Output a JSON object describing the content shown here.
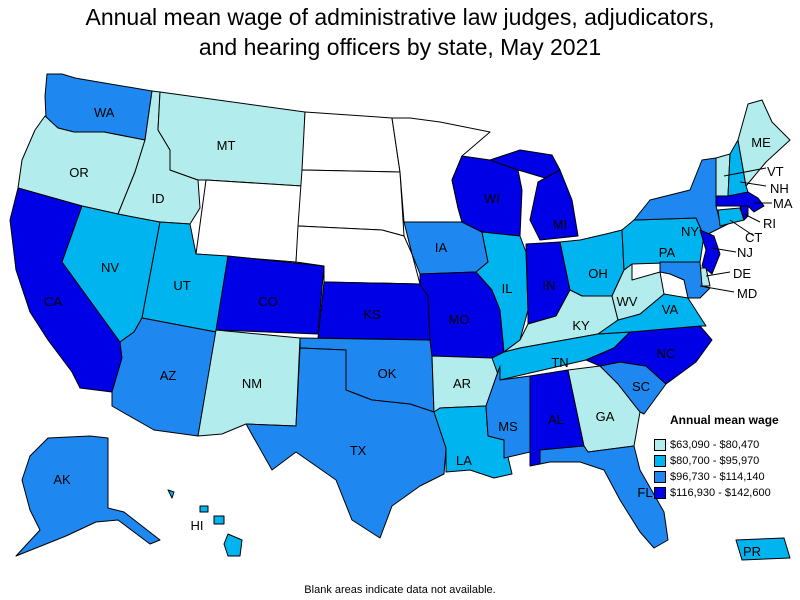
{
  "title_line1": "Annual mean wage of administrative law judges, adjudicators,",
  "title_line2": "and hearing officers by state, May 2021",
  "legend": {
    "title": "Annual mean wage",
    "items": [
      {
        "label": "$63,090 - $80,470",
        "color": "#b2ecec"
      },
      {
        "label": "$80,700 - $95,970",
        "color": "#00b4f0"
      },
      {
        "label": "$96,730 - $114,140",
        "color": "#1e88f0"
      },
      {
        "label": "$116,930 - $142,600",
        "color": "#0000e6"
      }
    ]
  },
  "no_data_color": "#ffffff",
  "footnote": "Blank areas indicate data not available.",
  "states": {
    "WA": {
      "label": "WA",
      "tier": 3
    },
    "OR": {
      "label": "OR",
      "tier": 1
    },
    "CA": {
      "label": "CA",
      "tier": 4
    },
    "NV": {
      "label": "NV",
      "tier": 2
    },
    "ID": {
      "label": "ID",
      "tier": 1
    },
    "MT": {
      "label": "MT",
      "tier": 1
    },
    "WY": {
      "label": "",
      "tier": 0
    },
    "UT": {
      "label": "UT",
      "tier": 2
    },
    "AZ": {
      "label": "AZ",
      "tier": 3
    },
    "CO": {
      "label": "CO",
      "tier": 4
    },
    "NM": {
      "label": "NM",
      "tier": 1
    },
    "ND": {
      "label": "",
      "tier": 0
    },
    "SD": {
      "label": "",
      "tier": 0
    },
    "NE": {
      "label": "",
      "tier": 0
    },
    "KS": {
      "label": "KS",
      "tier": 4
    },
    "OK": {
      "label": "OK",
      "tier": 3
    },
    "TX": {
      "label": "TX",
      "tier": 3
    },
    "MN": {
      "label": "",
      "tier": 0
    },
    "IA": {
      "label": "IA",
      "tier": 3
    },
    "MO": {
      "label": "MO",
      "tier": 4
    },
    "AR": {
      "label": "AR",
      "tier": 1
    },
    "LA": {
      "label": "LA",
      "tier": 2
    },
    "WI": {
      "label": "WI",
      "tier": 4
    },
    "IL": {
      "label": "IL",
      "tier": 2
    },
    "MI": {
      "label": "MI",
      "tier": 4
    },
    "IN": {
      "label": "IN",
      "tier": 4
    },
    "OH": {
      "label": "OH",
      "tier": 2
    },
    "KY": {
      "label": "KY",
      "tier": 1
    },
    "TN": {
      "label": "TN",
      "tier": 2
    },
    "MS": {
      "label": "MS",
      "tier": 3
    },
    "AL": {
      "label": "AL",
      "tier": 4
    },
    "GA": {
      "label": "GA",
      "tier": 1
    },
    "FL": {
      "label": "FL",
      "tier": 3
    },
    "SC": {
      "label": "SC",
      "tier": 3
    },
    "NC": {
      "label": "NC",
      "tier": 4
    },
    "VA": {
      "label": "VA",
      "tier": 2
    },
    "WV": {
      "label": "WV",
      "tier": 1
    },
    "PA": {
      "label": "PA",
      "tier": 2
    },
    "NY": {
      "label": "NY",
      "tier": 3
    },
    "ME": {
      "label": "ME",
      "tier": 1
    },
    "VT": {
      "label": "VT",
      "tier": 1
    },
    "NH": {
      "label": "NH",
      "tier": 2
    },
    "MA": {
      "label": "MA",
      "tier": 4
    },
    "RI": {
      "label": "RI",
      "tier": 4
    },
    "CT": {
      "label": "CT",
      "tier": 2
    },
    "NJ": {
      "label": "NJ",
      "tier": 4
    },
    "DE": {
      "label": "DE",
      "tier": 1
    },
    "MD": {
      "label": "MD",
      "tier": 3
    },
    "AK": {
      "label": "AK",
      "tier": 3
    },
    "HI": {
      "label": "HI",
      "tier": 2
    },
    "PR": {
      "label": "PR",
      "tier": 2
    }
  }
}
